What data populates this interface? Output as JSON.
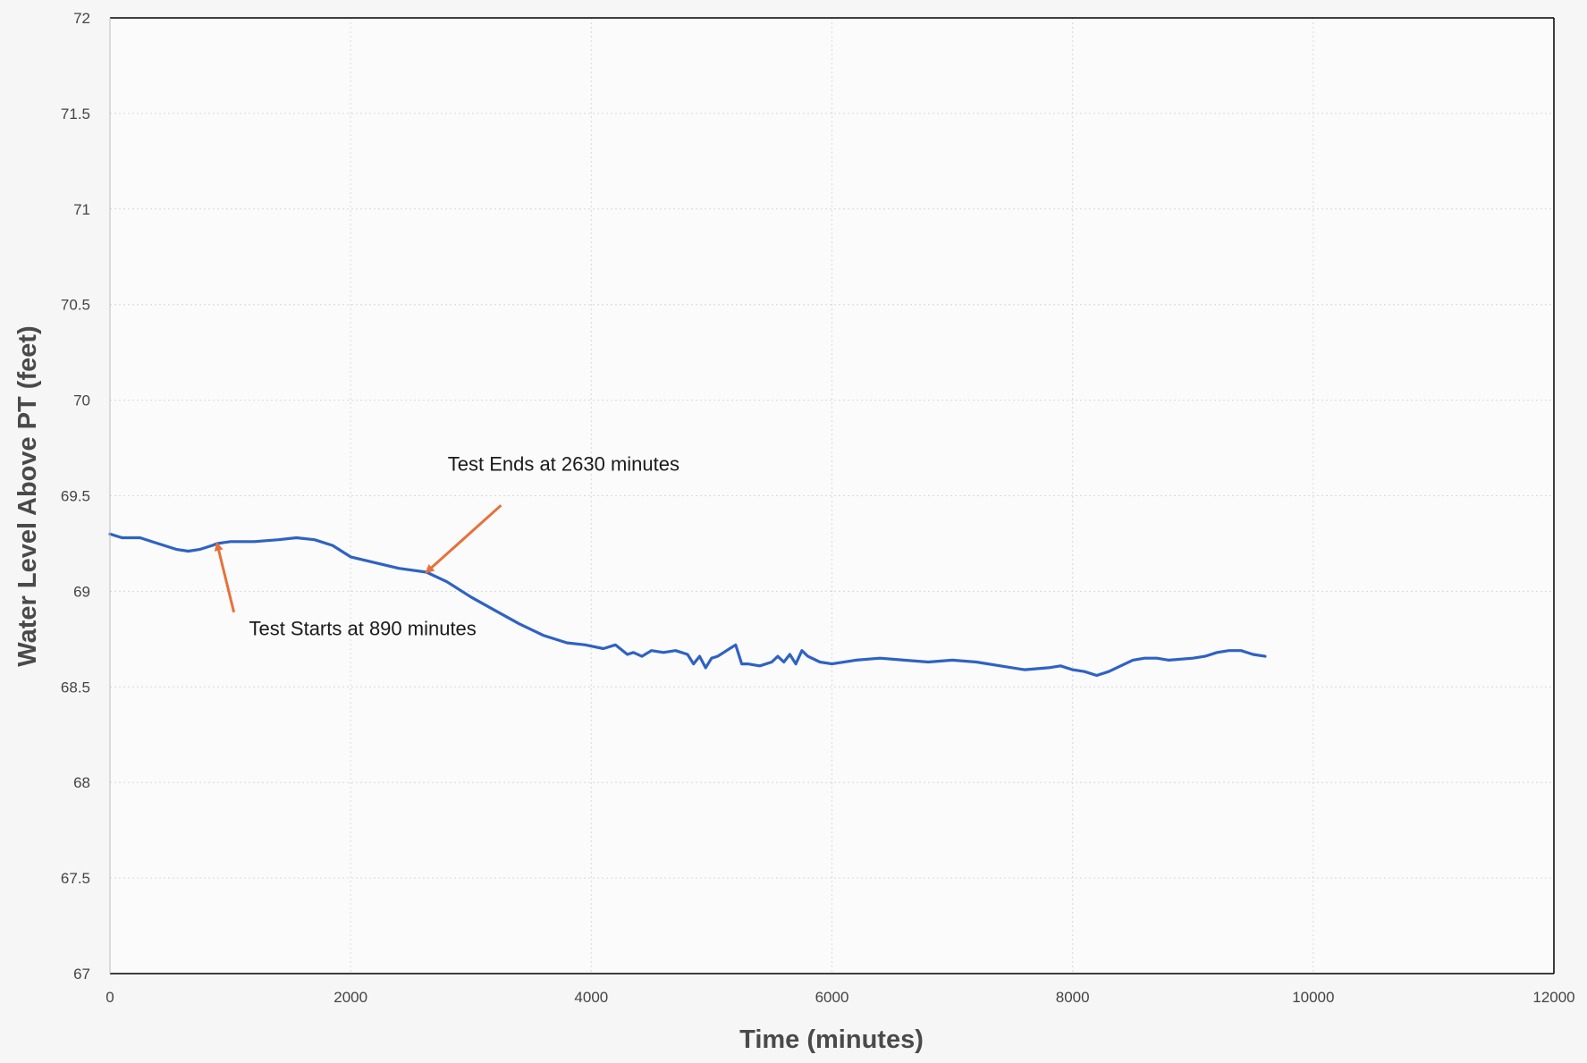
{
  "chart_data": {
    "type": "line",
    "title": "",
    "xlabel": "Time (minutes)",
    "ylabel": "Water Level Above PT (feet)",
    "xlim": [
      0,
      12000
    ],
    "ylim": [
      67,
      72
    ],
    "x_ticks": [
      0,
      2000,
      4000,
      6000,
      8000,
      10000,
      12000
    ],
    "x_tick_labels": [
      "0",
      "2000",
      "4000",
      "6000",
      "8000",
      "10000",
      "12000"
    ],
    "y_ticks": [
      67,
      67.5,
      68,
      68.5,
      69,
      69.5,
      70,
      70.5,
      71,
      71.5,
      72
    ],
    "y_tick_labels": [
      "67",
      "67.5",
      "68",
      "68.5",
      "69",
      "69.5",
      "70",
      "70.5",
      "71",
      "71.5",
      "72"
    ],
    "grid": true,
    "legend": "none",
    "colors": {
      "series": "#2e62c4",
      "annotation_arrow": "#e8703a",
      "axis": "#000000",
      "grid": "#d8d8d8"
    },
    "series": [
      {
        "x": [
          0,
          100,
          250,
          400,
          550,
          650,
          750,
          850,
          890,
          1000,
          1200,
          1400,
          1550,
          1700,
          1850,
          2000,
          2200,
          2400,
          2630,
          2800,
          3000,
          3200,
          3400,
          3600,
          3800,
          3950,
          4100,
          4200,
          4300,
          4350,
          4420,
          4500,
          4600,
          4700,
          4750,
          4800,
          4850,
          4900,
          4950,
          5000,
          5050,
          5100,
          5150,
          5200,
          5250,
          5300,
          5400,
          5500,
          5550,
          5600,
          5650,
          5700,
          5750,
          5800,
          5900,
          6000,
          6200,
          6400,
          6600,
          6800,
          7000,
          7200,
          7400,
          7600,
          7800,
          7900,
          8000,
          8100,
          8200,
          8300,
          8400,
          8500,
          8600,
          8700,
          8800,
          9000,
          9100,
          9200,
          9300,
          9400,
          9500,
          9600
        ],
        "y": [
          69.3,
          69.28,
          69.28,
          69.25,
          69.22,
          69.21,
          69.22,
          69.24,
          69.25,
          69.26,
          69.26,
          69.27,
          69.28,
          69.27,
          69.24,
          69.18,
          69.15,
          69.12,
          69.1,
          69.05,
          68.97,
          68.9,
          68.83,
          68.77,
          68.73,
          68.72,
          68.7,
          68.72,
          68.67,
          68.68,
          68.66,
          68.69,
          68.68,
          68.69,
          68.68,
          68.67,
          68.62,
          68.66,
          68.6,
          68.65,
          68.66,
          68.68,
          68.7,
          68.72,
          68.62,
          68.62,
          68.61,
          68.63,
          68.66,
          68.63,
          68.67,
          68.62,
          68.69,
          68.66,
          68.63,
          68.62,
          68.64,
          68.65,
          68.64,
          68.63,
          68.64,
          68.63,
          68.61,
          68.59,
          68.6,
          68.61,
          68.59,
          68.58,
          68.56,
          68.58,
          68.61,
          68.64,
          68.65,
          68.65,
          68.64,
          68.65,
          68.66,
          68.68,
          68.69,
          68.69,
          68.67,
          68.66
        ]
      }
    ],
    "annotations": [
      {
        "text": "Test Starts at 890 minutes",
        "target_x": 890,
        "target_y": 69.25,
        "tail_x": 1030,
        "tail_y": 68.89,
        "label_x": 2100,
        "label_y": 68.77
      },
      {
        "text": "Test Ends at 2630 minutes",
        "target_x": 2630,
        "target_y": 69.1,
        "tail_x": 3250,
        "tail_y": 69.45,
        "label_x": 3770,
        "label_y": 69.63
      }
    ]
  }
}
